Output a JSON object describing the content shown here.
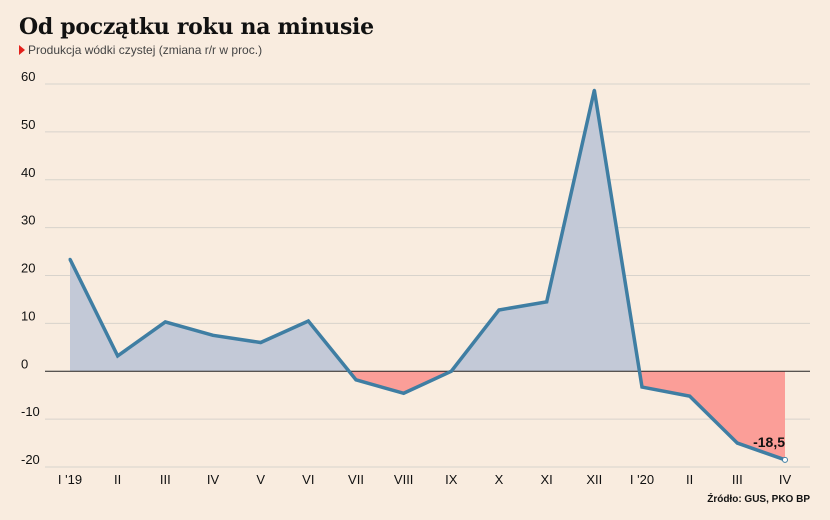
{
  "title": "Od początku roku na minusie",
  "subtitle": "Produkcja wódki czystej (zmiana r/r w proc.)",
  "source": "Źródło: GUS, PKO BP",
  "colors": {
    "background": "#f9ecdf",
    "line": "#3f7ea3",
    "positive_fill": "#c3c9d7",
    "negative_fill": "#fb9e98",
    "grid": "#d8d3cc",
    "marker": "#e3201b"
  },
  "chart_data": {
    "type": "area",
    "categories": [
      "I '19",
      "II",
      "III",
      "IV",
      "V",
      "VI",
      "VII",
      "VIII",
      "IX",
      "X",
      "XI",
      "XII",
      "I '20",
      "II",
      "III",
      "IV"
    ],
    "values": [
      23.4,
      3.2,
      10.3,
      7.5,
      6.0,
      10.5,
      -1.8,
      -4.6,
      0.0,
      12.8,
      14.5,
      58.7,
      -3.3,
      -5.2,
      -15.0,
      -18.5
    ],
    "ylim": [
      -20,
      60
    ],
    "yticks": [
      60,
      50,
      40,
      30,
      20,
      10,
      0,
      -10,
      -20
    ],
    "data_labels": [
      {
        "index": 15,
        "text": "-18,5"
      }
    ],
    "grid": true,
    "xlabel": "",
    "ylabel": ""
  }
}
